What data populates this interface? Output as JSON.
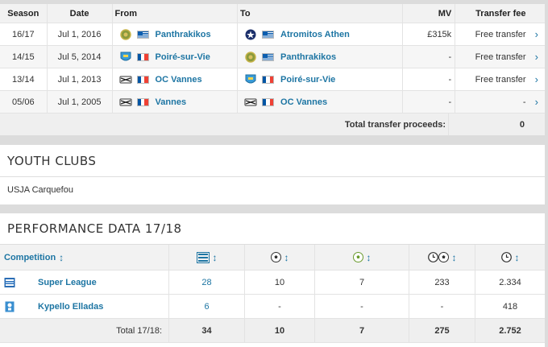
{
  "transfers": {
    "headers": {
      "season": "Season",
      "date": "Date",
      "from": "From",
      "to": "To",
      "mv": "MV",
      "fee": "Transfer fee"
    },
    "rows": [
      {
        "season": "16/17",
        "date": "Jul 1, 2016",
        "from": "Panthrakikos",
        "to": "Atromitos Athen",
        "mv": "£315k",
        "fee": "Free transfer"
      },
      {
        "season": "14/15",
        "date": "Jul 5, 2014",
        "from": "Poiré-sur-Vie",
        "to": "Panthrakikos",
        "mv": "-",
        "fee": "Free transfer"
      },
      {
        "season": "13/14",
        "date": "Jul 1, 2013",
        "from": "OC Vannes",
        "to": "Poiré-sur-Vie",
        "mv": "-",
        "fee": "Free transfer"
      },
      {
        "season": "05/06",
        "date": "Jul 1, 2005",
        "from": "Vannes",
        "to": "OC Vannes",
        "mv": "-",
        "fee": "-"
      }
    ],
    "total_label": "Total transfer proceeds:",
    "total_value": "0"
  },
  "youth": {
    "title": "YOUTH CLUBS",
    "text": "USJA Carquefou"
  },
  "performance": {
    "title": "PERFORMANCE DATA 17/18",
    "competition_header": "Competition",
    "sort_glyph": "↕",
    "rows": [
      {
        "name": "Super League",
        "apps": "28",
        "goals": "10",
        "assists": "7",
        "minutes_per_goal": "233",
        "minutes": "2.334"
      },
      {
        "name": "Kypello Elladas",
        "apps": "6",
        "goals": "-",
        "assists": "-",
        "minutes_per_goal": "-",
        "minutes": "418"
      }
    ],
    "total": {
      "label": "Total 17/18:",
      "apps": "34",
      "goals": "10",
      "assists": "7",
      "minutes_per_goal": "275",
      "minutes": "2.752"
    }
  },
  "colors": {
    "link": "#1d75a3",
    "header_bg": "#f2f2f2",
    "page_bg": "#dcdcdc"
  }
}
